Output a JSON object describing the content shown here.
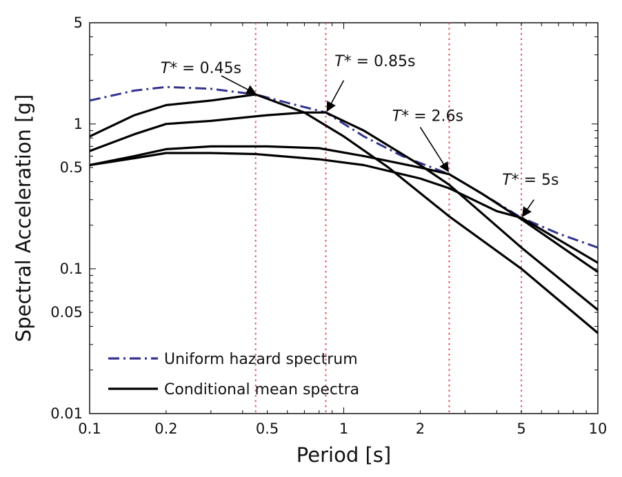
{
  "chart_data": {
    "type": "line",
    "x_scale": "log",
    "y_scale": "log",
    "xlabel": "Period [s]",
    "ylabel": "Spectral Acceleration [g]",
    "xlim": [
      0.1,
      10
    ],
    "ylim": [
      0.01,
      5
    ],
    "grid": false,
    "legend_position": "bottom-left",
    "x_ticks": [
      {
        "value": 0.1,
        "label": "0.1"
      },
      {
        "value": 0.2,
        "label": "0.2"
      },
      {
        "value": 0.5,
        "label": "0.5"
      },
      {
        "value": 1,
        "label": "1"
      },
      {
        "value": 2,
        "label": "2"
      },
      {
        "value": 5,
        "label": "5"
      },
      {
        "value": 10,
        "label": "10"
      }
    ],
    "y_ticks": [
      {
        "value": 0.01,
        "label": "0.01"
      },
      {
        "value": 0.05,
        "label": "0.05"
      },
      {
        "value": 0.1,
        "label": "0.1"
      },
      {
        "value": 0.5,
        "label": "0.5"
      },
      {
        "value": 1,
        "label": "1"
      },
      {
        "value": 5,
        "label": "5"
      }
    ],
    "reference_periods": [
      {
        "x": 0.45,
        "color": "#e0505a"
      },
      {
        "x": 0.85,
        "color": "#e0505a"
      },
      {
        "x": 2.6,
        "color": "#e0505a"
      },
      {
        "x": 5,
        "color": "#e0505a"
      }
    ],
    "series": [
      {
        "name": "Uniform hazard spectrum",
        "style": "dashdot",
        "color": "#33338f",
        "points": [
          [
            0.1,
            1.45
          ],
          [
            0.15,
            1.7
          ],
          [
            0.2,
            1.8
          ],
          [
            0.3,
            1.75
          ],
          [
            0.45,
            1.6
          ],
          [
            0.6,
            1.4
          ],
          [
            0.85,
            1.2
          ],
          [
            1.2,
            0.82
          ],
          [
            1.7,
            0.6
          ],
          [
            2.6,
            0.45
          ],
          [
            3.5,
            0.33
          ],
          [
            5,
            0.225
          ],
          [
            7,
            0.175
          ],
          [
            10,
            0.14
          ]
        ]
      },
      {
        "name": "Conditional mean spectra",
        "style": "solid",
        "color": "#000000",
        "points": [
          [
            0.1,
            0.82
          ],
          [
            0.15,
            1.15
          ],
          [
            0.2,
            1.35
          ],
          [
            0.3,
            1.45
          ],
          [
            0.45,
            1.6
          ],
          [
            0.7,
            1.2
          ],
          [
            1.0,
            0.82
          ],
          [
            1.5,
            0.5
          ],
          [
            2.6,
            0.23
          ],
          [
            5,
            0.1
          ],
          [
            10,
            0.036
          ]
        ]
      },
      {
        "style": "solid",
        "color": "#000000",
        "points": [
          [
            0.1,
            0.65
          ],
          [
            0.15,
            0.85
          ],
          [
            0.2,
            1.0
          ],
          [
            0.3,
            1.05
          ],
          [
            0.5,
            1.15
          ],
          [
            0.7,
            1.2
          ],
          [
            0.85,
            1.2
          ],
          [
            1.2,
            0.9
          ],
          [
            2.0,
            0.52
          ],
          [
            2.6,
            0.38
          ],
          [
            5,
            0.14
          ],
          [
            10,
            0.052
          ]
        ]
      },
      {
        "style": "solid",
        "color": "#000000",
        "points": [
          [
            0.1,
            0.52
          ],
          [
            0.15,
            0.6
          ],
          [
            0.2,
            0.67
          ],
          [
            0.3,
            0.7
          ],
          [
            0.5,
            0.7
          ],
          [
            0.8,
            0.68
          ],
          [
            1.2,
            0.6
          ],
          [
            2.0,
            0.5
          ],
          [
            2.6,
            0.45
          ],
          [
            3.5,
            0.33
          ],
          [
            5,
            0.22
          ],
          [
            10,
            0.095
          ]
        ]
      },
      {
        "style": "solid",
        "color": "#000000",
        "points": [
          [
            0.1,
            0.52
          ],
          [
            0.15,
            0.58
          ],
          [
            0.2,
            0.63
          ],
          [
            0.3,
            0.63
          ],
          [
            0.45,
            0.62
          ],
          [
            0.8,
            0.57
          ],
          [
            1.2,
            0.52
          ],
          [
            2.0,
            0.42
          ],
          [
            2.6,
            0.36
          ],
          [
            4.0,
            0.25
          ],
          [
            5,
            0.225
          ],
          [
            10,
            0.11
          ]
        ]
      }
    ],
    "annotations": [
      {
        "text_italic": "T",
        "text": "* = 0.45s",
        "text_anchor": [
          0.19,
          2.25
        ],
        "arrow_from": [
          0.33,
          2.15
        ],
        "arrow_to": [
          0.45,
          1.62
        ]
      },
      {
        "text_italic": "T",
        "text": "* = 0.85s",
        "text_anchor": [
          0.92,
          2.5
        ],
        "arrow_from": [
          1.0,
          2.0
        ],
        "arrow_to": [
          0.86,
          1.23
        ]
      },
      {
        "text_italic": "T",
        "text": "* = 2.6s",
        "text_anchor": [
          1.55,
          1.05
        ],
        "arrow_from": [
          2.0,
          0.95
        ],
        "arrow_to": [
          2.58,
          0.47
        ]
      },
      {
        "text_italic": "T",
        "text": "* = 5s",
        "text_anchor": [
          4.2,
          0.38
        ],
        "arrow_from": [
          5.6,
          0.3
        ],
        "arrow_to": [
          5.05,
          0.23
        ]
      }
    ]
  }
}
